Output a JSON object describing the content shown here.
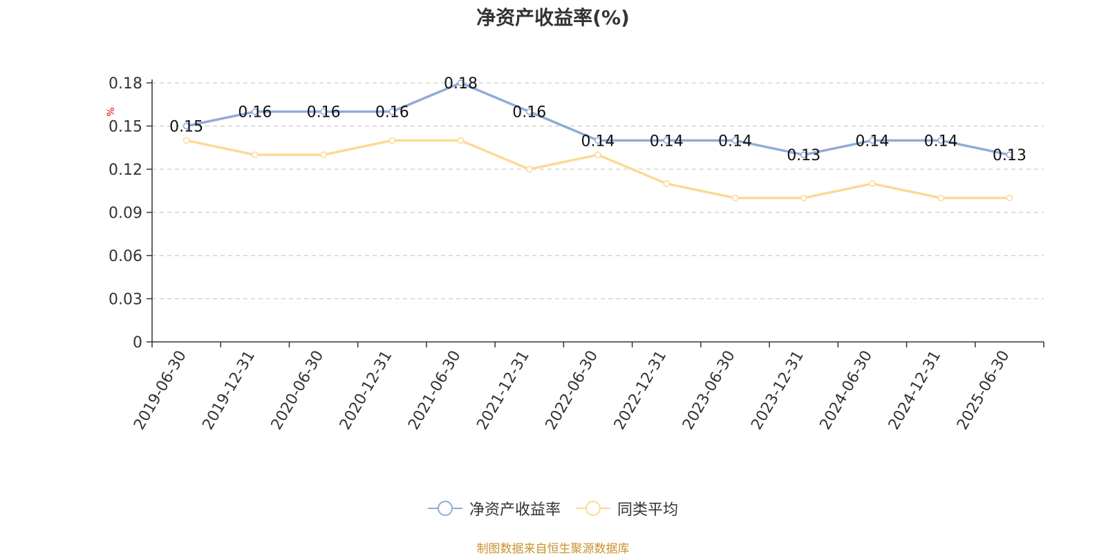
{
  "chart_data": {
    "type": "line",
    "title": "净资产收益率(%)",
    "ylabel": "%",
    "ylim": [
      0,
      0.18
    ],
    "yticks": [
      0,
      0.03,
      0.06,
      0.09,
      0.12,
      0.15,
      0.18
    ],
    "ytick_labels": [
      "0",
      "0.03",
      "0.06",
      "0.09",
      "0.12",
      "0.15",
      "0.18"
    ],
    "grid": true,
    "legend_position": "bottom",
    "categories": [
      "2019-06-30",
      "2019-12-31",
      "2020-06-30",
      "2020-12-31",
      "2021-06-30",
      "2021-12-31",
      "2022-06-30",
      "2022-12-31",
      "2023-06-30",
      "2023-12-31",
      "2024-06-30",
      "2024-12-31",
      "2025-06-30"
    ],
    "series": [
      {
        "name": "净资产收益率",
        "color": "#8fabd8",
        "values": [
          0.15,
          0.16,
          0.16,
          0.16,
          0.18,
          0.16,
          0.14,
          0.14,
          0.14,
          0.13,
          0.14,
          0.14,
          0.13
        ],
        "data_labels": [
          "0.15",
          "0.16",
          "0.16",
          "0.16",
          "0.18",
          "0.16",
          "0.14",
          "0.14",
          "0.14",
          "0.13",
          "0.14",
          "0.14",
          "0.13"
        ]
      },
      {
        "name": "同类平均",
        "color": "#fcd994",
        "values": [
          0.14,
          0.13,
          0.13,
          0.14,
          0.14,
          0.12,
          0.13,
          0.11,
          0.1,
          0.1,
          0.11,
          0.1,
          0.1
        ]
      }
    ]
  },
  "source_note": "制图数据来自恒生聚源数据库",
  "colors": {
    "axis": "#333333",
    "grid": "#cccccc",
    "ylabel": "#e00000",
    "source_note": "#c8922d"
  }
}
